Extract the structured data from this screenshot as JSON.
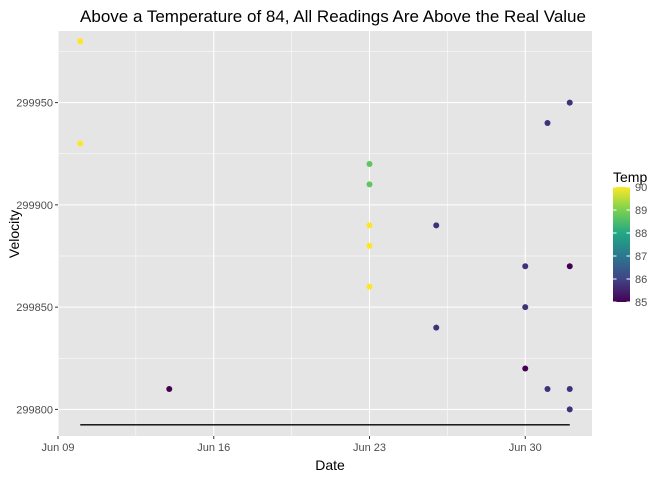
{
  "chart_data": {
    "type": "scatter",
    "title": "Above a Temperature of 84, All Readings Are Above the Real Value",
    "xlabel": "Date",
    "ylabel": "Velocity",
    "x_ticks": [
      "Jun 09",
      "Jun 16",
      "Jun 23",
      "Jun 30"
    ],
    "y_ticks": [
      "299800",
      "299850",
      "299900",
      "299950"
    ],
    "xlim": [
      "2019-06-09",
      "2019-07-03"
    ],
    "ylim": [
      299787,
      299985
    ],
    "grid": true,
    "legend": {
      "title": "Temp",
      "position": "right",
      "range": [
        85,
        90
      ],
      "ticks": [
        "85",
        "86",
        "87",
        "88",
        "89",
        "90"
      ]
    },
    "colormap": "viridis",
    "points": [
      {
        "x": "2019-06-10",
        "y": 299980,
        "temp": 90
      },
      {
        "x": "2019-06-10",
        "y": 299930,
        "temp": 90
      },
      {
        "x": "2019-06-14",
        "y": 299810,
        "temp": 85
      },
      {
        "x": "2019-06-23",
        "y": 299920,
        "temp": 88.7
      },
      {
        "x": "2019-06-23",
        "y": 299910,
        "temp": 88.7
      },
      {
        "x": "2019-06-23",
        "y": 299890,
        "temp": 90
      },
      {
        "x": "2019-06-23",
        "y": 299880,
        "temp": 90
      },
      {
        "x": "2019-06-23",
        "y": 299860,
        "temp": 90
      },
      {
        "x": "2019-06-26",
        "y": 299890,
        "temp": 85.7
      },
      {
        "x": "2019-06-26",
        "y": 299840,
        "temp": 85.7
      },
      {
        "x": "2019-06-30",
        "y": 299870,
        "temp": 85.7
      },
      {
        "x": "2019-06-30",
        "y": 299850,
        "temp": 85.7
      },
      {
        "x": "2019-06-30",
        "y": 299820,
        "temp": 85
      },
      {
        "x": "2019-07-01",
        "y": 299940,
        "temp": 85.7
      },
      {
        "x": "2019-07-01",
        "y": 299810,
        "temp": 85.7
      },
      {
        "x": "2019-07-02",
        "y": 299950,
        "temp": 85.7
      },
      {
        "x": "2019-07-02",
        "y": 299870,
        "temp": 85
      },
      {
        "x": "2019-07-02",
        "y": 299810,
        "temp": 85.7
      },
      {
        "x": "2019-07-02",
        "y": 299800,
        "temp": 85.7
      }
    ],
    "reference_line": {
      "x_start": "2019-06-10",
      "x_end": "2019-07-02",
      "y": 299792.458
    },
    "colors": {
      "panel_background": "#e5e5e5",
      "grid_line": "#ffffff",
      "reference_line": "#000000",
      "viridis_85": "#440154",
      "viridis_86": "#414487",
      "viridis_87": "#2a788e",
      "viridis_88": "#22a884",
      "viridis_89": "#7ad151",
      "viridis_90": "#fde725"
    }
  }
}
